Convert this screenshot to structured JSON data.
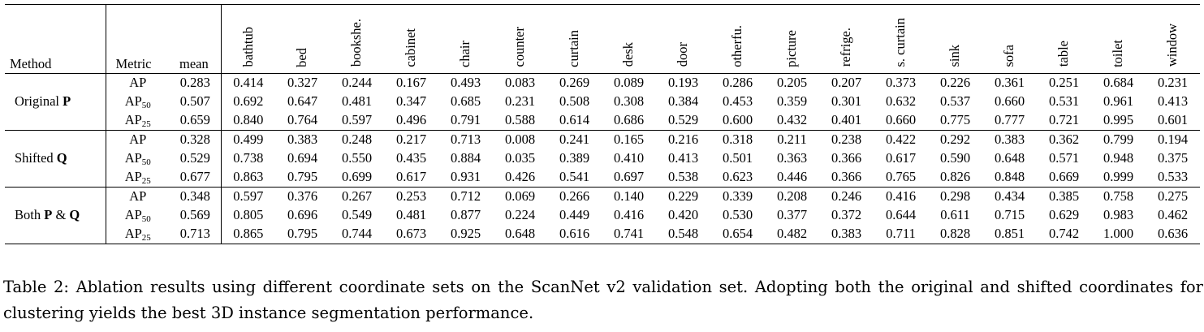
{
  "table": {
    "headers": {
      "method": "Method",
      "metric": "Metric",
      "mean": "mean",
      "categories": [
        "bathtub",
        "bed",
        "bookshe.",
        "cabinet",
        "chair",
        "counter",
        "curtain",
        "desk",
        "door",
        "otherfu.",
        "picture",
        "refrige.",
        "s. curtain",
        "sink",
        "sofa",
        "table",
        "toilet",
        "window"
      ]
    },
    "groups": [
      {
        "method_text": "Original ",
        "method_symbol": "P",
        "rows": [
          {
            "metric": "AP",
            "sub": "",
            "mean": "0.283",
            "values": [
              "0.414",
              "0.327",
              "0.244",
              "0.167",
              "0.493",
              "0.083",
              "0.269",
              "0.089",
              "0.193",
              "0.286",
              "0.205",
              "0.207",
              "0.373",
              "0.226",
              "0.361",
              "0.251",
              "0.684",
              "0.231"
            ]
          },
          {
            "metric": "AP",
            "sub": "50",
            "mean": "0.507",
            "values": [
              "0.692",
              "0.647",
              "0.481",
              "0.347",
              "0.685",
              "0.231",
              "0.508",
              "0.308",
              "0.384",
              "0.453",
              "0.359",
              "0.301",
              "0.632",
              "0.537",
              "0.660",
              "0.531",
              "0.961",
              "0.413"
            ]
          },
          {
            "metric": "AP",
            "sub": "25",
            "mean": "0.659",
            "values": [
              "0.840",
              "0.764",
              "0.597",
              "0.496",
              "0.791",
              "0.588",
              "0.614",
              "0.686",
              "0.529",
              "0.600",
              "0.432",
              "0.401",
              "0.660",
              "0.775",
              "0.777",
              "0.721",
              "0.995",
              "0.601"
            ]
          }
        ]
      },
      {
        "method_text": "Shifted ",
        "method_symbol": "Q",
        "rows": [
          {
            "metric": "AP",
            "sub": "",
            "mean": "0.328",
            "values": [
              "0.499",
              "0.383",
              "0.248",
              "0.217",
              "0.713",
              "0.008",
              "0.241",
              "0.165",
              "0.216",
              "0.318",
              "0.211",
              "0.238",
              "0.422",
              "0.292",
              "0.383",
              "0.362",
              "0.799",
              "0.194"
            ]
          },
          {
            "metric": "AP",
            "sub": "50",
            "mean": "0.529",
            "values": [
              "0.738",
              "0.694",
              "0.550",
              "0.435",
              "0.884",
              "0.035",
              "0.389",
              "0.410",
              "0.413",
              "0.501",
              "0.363",
              "0.366",
              "0.617",
              "0.590",
              "0.648",
              "0.571",
              "0.948",
              "0.375"
            ]
          },
          {
            "metric": "AP",
            "sub": "25",
            "mean": "0.677",
            "values": [
              "0.863",
              "0.795",
              "0.699",
              "0.617",
              "0.931",
              "0.426",
              "0.541",
              "0.697",
              "0.538",
              "0.623",
              "0.446",
              "0.366",
              "0.765",
              "0.826",
              "0.848",
              "0.669",
              "0.999",
              "0.533"
            ]
          }
        ]
      },
      {
        "method_text": "Both ",
        "method_symbol": "P",
        "method_mid": " & ",
        "method_symbol2": "Q",
        "rows": [
          {
            "metric": "AP",
            "sub": "",
            "mean": "0.348",
            "values": [
              "0.597",
              "0.376",
              "0.267",
              "0.253",
              "0.712",
              "0.069",
              "0.266",
              "0.140",
              "0.229",
              "0.339",
              "0.208",
              "0.246",
              "0.416",
              "0.298",
              "0.434",
              "0.385",
              "0.758",
              "0.275"
            ]
          },
          {
            "metric": "AP",
            "sub": "50",
            "mean": "0.569",
            "values": [
              "0.805",
              "0.696",
              "0.549",
              "0.481",
              "0.877",
              "0.224",
              "0.449",
              "0.416",
              "0.420",
              "0.530",
              "0.377",
              "0.372",
              "0.644",
              "0.611",
              "0.715",
              "0.629",
              "0.983",
              "0.462"
            ]
          },
          {
            "metric": "AP",
            "sub": "25",
            "mean": "0.713",
            "values": [
              "0.865",
              "0.795",
              "0.744",
              "0.673",
              "0.925",
              "0.648",
              "0.616",
              "0.741",
              "0.548",
              "0.654",
              "0.482",
              "0.383",
              "0.711",
              "0.828",
              "0.851",
              "0.742",
              "1.000",
              "0.636"
            ]
          }
        ]
      }
    ]
  },
  "caption": "Table 2: Ablation results using different coordinate sets on the ScanNet v2 validation set. Adopting both the original and shifted coordinates for clustering yields the best 3D instance segmentation performance."
}
